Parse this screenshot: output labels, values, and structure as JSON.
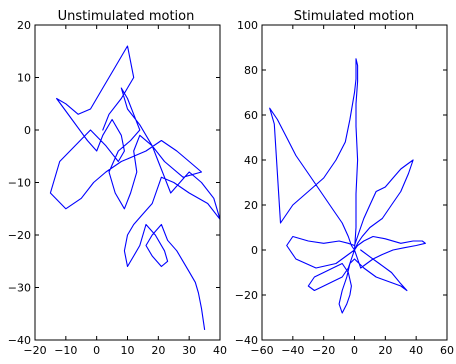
{
  "chart_data": [
    {
      "type": "line",
      "title": "Unstimulated motion",
      "xlim": [
        -20,
        40
      ],
      "ylim": [
        -40,
        20
      ],
      "xticks": [
        -20,
        -10,
        0,
        10,
        20,
        30,
        40
      ],
      "yticks": [
        -40,
        -30,
        -20,
        -10,
        0,
        10,
        20
      ],
      "grid": false,
      "color": "#0000ff",
      "series": [
        {
          "x": [
            2,
            4,
            8,
            12,
            10,
            6,
            2,
            -2,
            -6,
            -10,
            -13,
            -8,
            -3,
            0,
            2,
            5,
            8,
            9,
            7,
            3,
            -2,
            -7,
            -12,
            -15,
            -10,
            -5,
            -1,
            3,
            8,
            12,
            16,
            21,
            26,
            30,
            34,
            28,
            22,
            18,
            14,
            10,
            8,
            10,
            12,
            14,
            11,
            7,
            4,
            6,
            9,
            11,
            13,
            12,
            14,
            18,
            20,
            22,
            24,
            27,
            30,
            34,
            38,
            40,
            36,
            30,
            25,
            21,
            18,
            15,
            12,
            10,
            9,
            10,
            12,
            14,
            16,
            19,
            22,
            23,
            21,
            18,
            16,
            18,
            21,
            23,
            26,
            28,
            30,
            32,
            33,
            34,
            35
          ],
          "y": [
            0,
            3,
            6,
            10,
            16,
            12,
            8,
            4,
            3,
            5,
            6,
            2,
            -2,
            -4,
            -1,
            2,
            -1,
            -4,
            -6,
            -3,
            0,
            -3,
            -6,
            -12,
            -15,
            -13,
            -10,
            -8,
            -6,
            -5,
            -4,
            -2,
            -4,
            -6,
            -8,
            -9,
            -6,
            -3,
            1,
            4,
            8,
            6,
            3,
            0,
            -2,
            -4,
            -8,
            -12,
            -15,
            -12,
            -8,
            -4,
            -1,
            -3,
            -6,
            -9,
            -12,
            -10,
            -8,
            -10,
            -13,
            -17,
            -14,
            -12,
            -10,
            -9,
            -14,
            -16,
            -18,
            -20,
            -23,
            -26,
            -24,
            -22,
            -18,
            -20,
            -23,
            -25,
            -26,
            -24,
            -22,
            -20,
            -18,
            -21,
            -23,
            -25,
            -27,
            -29,
            -31,
            -34,
            -38
          ]
        }
      ]
    },
    {
      "type": "line",
      "title": "Stimulated motion",
      "xlim": [
        -60,
        60
      ],
      "ylim": [
        -40,
        100
      ],
      "xticks": [
        -60,
        -40,
        -20,
        0,
        20,
        40,
        60
      ],
      "yticks": [
        -40,
        -20,
        0,
        20,
        40,
        60,
        80,
        100
      ],
      "grid": false,
      "color": "#0000ff",
      "series": [
        {
          "x": [
            0,
            1,
            1,
            2,
            1,
            1,
            2,
            2,
            1,
            1,
            0,
            -3,
            -6,
            -12,
            -20,
            -30,
            -40,
            -48,
            -52,
            -55,
            -50,
            -44,
            -38,
            -30,
            -22,
            -14,
            -8,
            -4,
            -2,
            0,
            -4,
            -12,
            -25,
            -38,
            -44,
            -40,
            -30,
            -20,
            -10,
            -4,
            0,
            3,
            6,
            10,
            14,
            20,
            25,
            30,
            34,
            38,
            35,
            30,
            24,
            18,
            10,
            5,
            2,
            0,
            2,
            6,
            12,
            20,
            30,
            38,
            44,
            46,
            40,
            32,
            25,
            18,
            12,
            8,
            4,
            2,
            0,
            -2,
            -4,
            -8,
            -14,
            -20,
            -26,
            -30,
            -26,
            -20,
            -14,
            -8,
            -4,
            -2,
            -3,
            -5,
            -8,
            -10,
            -8,
            -5,
            -3,
            0,
            6,
            14,
            22,
            30,
            34,
            30,
            24,
            16,
            10,
            4
          ],
          "y": [
            0,
            10,
            25,
            40,
            55,
            65,
            75,
            82,
            85,
            76,
            70,
            58,
            48,
            40,
            32,
            26,
            20,
            12,
            56,
            63,
            58,
            50,
            42,
            34,
            26,
            18,
            12,
            6,
            2,
            0,
            -2,
            -6,
            -8,
            -4,
            2,
            6,
            4,
            3,
            4,
            3,
            2,
            8,
            14,
            20,
            26,
            28,
            32,
            36,
            38,
            40,
            34,
            26,
            20,
            14,
            10,
            6,
            3,
            0,
            2,
            4,
            6,
            5,
            3,
            4,
            4,
            3,
            2,
            1,
            0,
            -2,
            -4,
            -6,
            -8,
            -4,
            0,
            -4,
            -8,
            -12,
            -14,
            -16,
            -18,
            -16,
            -12,
            -10,
            -8,
            -6,
            -10,
            -16,
            -20,
            -24,
            -28,
            -24,
            -18,
            -12,
            -6,
            -4,
            -8,
            -12,
            -14,
            -16,
            -18,
            -15,
            -10,
            -6,
            -3,
            0
          ]
        }
      ]
    }
  ]
}
